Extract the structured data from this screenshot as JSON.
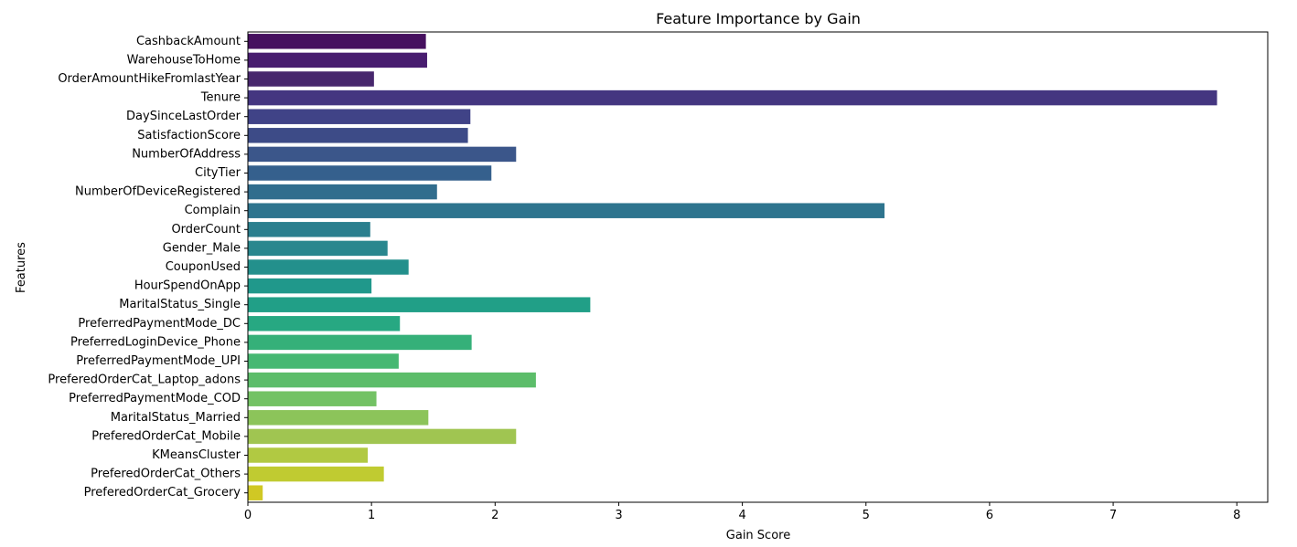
{
  "chart_data": {
    "type": "bar",
    "orientation": "horizontal",
    "title": "Feature Importance by Gain",
    "xlabel": "Gain Score",
    "ylabel": "Features",
    "xlim": [
      0,
      8.25
    ],
    "xticks": [
      0,
      1,
      2,
      3,
      4,
      5,
      6,
      7,
      8
    ],
    "grid": false,
    "colormap": "viridis",
    "categories": [
      "CashbackAmount",
      "WarehouseToHome",
      "OrderAmountHikeFromlastYear",
      "Tenure",
      "DaySinceLastOrder",
      "SatisfactionScore",
      "NumberOfAddress",
      "CityTier",
      "NumberOfDeviceRegistered",
      "Complain",
      "OrderCount",
      "Gender_Male",
      "CouponUsed",
      "HourSpendOnApp",
      "MaritalStatus_Single",
      "PreferredPaymentMode_DC",
      "PreferredLoginDevice_Phone",
      "PreferredPaymentMode_UPI",
      "PreferedOrderCat_Laptop_adons",
      "PreferredPaymentMode_COD",
      "MaritalStatus_Married",
      "PreferedOrderCat_Mobile",
      "KMeansCluster",
      "PreferedOrderCat_Others",
      "PreferedOrderCat_Grocery"
    ],
    "values": [
      1.44,
      1.45,
      1.02,
      7.84,
      1.8,
      1.78,
      2.17,
      1.97,
      1.53,
      5.15,
      0.99,
      1.13,
      1.3,
      1.0,
      2.77,
      1.23,
      1.81,
      1.22,
      2.33,
      1.04,
      1.46,
      2.17,
      0.97,
      1.1,
      0.12
    ],
    "colors": [
      "#46105f",
      "#481d6f",
      "#47276d",
      "#443680",
      "#404387",
      "#3d4b87",
      "#3b568a",
      "#35608d",
      "#316d8d",
      "#2e748e",
      "#2b7f8e",
      "#29878e",
      "#23908c",
      "#20988b",
      "#219f87",
      "#27a882",
      "#35b079",
      "#46b872",
      "#5cbd6a",
      "#73c264",
      "#8cc45a",
      "#a0c551",
      "#b1c942",
      "#c0cb31",
      "#d0c824"
    ]
  }
}
